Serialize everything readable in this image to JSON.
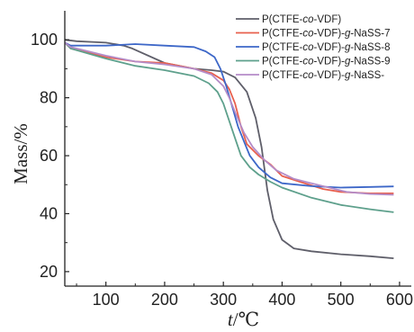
{
  "chart_data": {
    "type": "line",
    "xlabel_parts": [
      {
        "text": "t",
        "italic": true
      },
      {
        "text": "/℃",
        "italic": false
      }
    ],
    "ylabel": "Mass/%",
    "xlim": [
      30,
      620
    ],
    "ylim": [
      15,
      110
    ],
    "xticks": [
      100,
      200,
      300,
      400,
      500,
      600
    ],
    "yticks": [
      20,
      40,
      60,
      80,
      100
    ],
    "grid": false,
    "legend_position": "top-right",
    "series": [
      {
        "name": "P(CTFE-co-VDF)",
        "name_parts": [
          {
            "text": "P(CTFE-",
            "italic": false
          },
          {
            "text": "co",
            "italic": true
          },
          {
            "text": "-VDF)",
            "italic": false
          }
        ],
        "color": "#5f5f6a",
        "x": [
          30,
          50,
          100,
          130,
          145,
          200,
          250,
          280,
          300,
          320,
          340,
          355,
          365,
          375,
          385,
          400,
          420,
          450,
          500,
          550,
          590
        ],
        "y": [
          100,
          99.5,
          99,
          98,
          97,
          92,
          90,
          89.5,
          89,
          87,
          82,
          73,
          63,
          48,
          38,
          31,
          28,
          27,
          26,
          25.3,
          24.6
        ]
      },
      {
        "name": "P(CTFE-co-VDF)-g-NaSS-7",
        "name_parts": [
          {
            "text": "P(CTFE-",
            "italic": false
          },
          {
            "text": "co",
            "italic": true
          },
          {
            "text": "-VDF)-",
            "italic": false
          },
          {
            "text": "g",
            "italic": true
          },
          {
            "text": "-NaSS-7",
            "italic": false
          }
        ],
        "color": "#e8604e",
        "x": [
          30,
          40,
          100,
          150,
          200,
          250,
          280,
          300,
          310,
          320,
          330,
          340,
          360,
          380,
          400,
          430,
          470,
          500,
          550,
          590
        ],
        "y": [
          99,
          97,
          94,
          92.5,
          92,
          90,
          88.5,
          86,
          83,
          78,
          70,
          64,
          60,
          57,
          53,
          51,
          48.5,
          47.5,
          47,
          47
        ]
      },
      {
        "name": "P(CTFE-co-VDF)-g-NaSS-8",
        "name_parts": [
          {
            "text": "P(CTFE-",
            "italic": false
          },
          {
            "text": "co",
            "italic": true
          },
          {
            "text": "-VDF)-",
            "italic": false
          },
          {
            "text": "g",
            "italic": true
          },
          {
            "text": "-NaSS-8",
            "italic": false
          }
        ],
        "color": "#3d67c8",
        "x": [
          30,
          40,
          100,
          150,
          200,
          250,
          270,
          285,
          295,
          305,
          315,
          325,
          335,
          345,
          360,
          380,
          400,
          450,
          500,
          550,
          590
        ],
        "y": [
          99,
          98,
          98,
          98.5,
          98,
          97.5,
          96,
          94,
          90,
          84,
          77,
          70,
          65,
          60,
          56,
          52.5,
          50.5,
          49.5,
          49,
          49.2,
          49.4
        ]
      },
      {
        "name": "P(CTFE-co-VDF)-g-NaSS-9",
        "name_parts": [
          {
            "text": "P(CTFE-",
            "italic": false
          },
          {
            "text": "co",
            "italic": true
          },
          {
            "text": "-VDF)-",
            "italic": false
          },
          {
            "text": "g",
            "italic": true
          },
          {
            "text": "-NaSS-9",
            "italic": false
          }
        ],
        "color": "#5ea08c",
        "x": [
          30,
          40,
          100,
          150,
          200,
          250,
          275,
          290,
          300,
          310,
          320,
          330,
          345,
          360,
          380,
          400,
          450,
          500,
          550,
          590
        ],
        "y": [
          99,
          97,
          93.5,
          91,
          89.5,
          87.5,
          85,
          82,
          78,
          72,
          66,
          60,
          56,
          53.5,
          51,
          49,
          45.5,
          43,
          41.5,
          40.5
        ]
      },
      {
        "name": "P(CTFE-co-VDF)-g-NaSS-",
        "name_parts": [
          {
            "text": "P(CTFE-",
            "italic": false
          },
          {
            "text": "co",
            "italic": true
          },
          {
            "text": "-VDF)-",
            "italic": false
          },
          {
            "text": "g",
            "italic": true
          },
          {
            "text": "-NaSS-",
            "italic": false
          }
        ],
        "color": "#b48cc8",
        "x": [
          30,
          40,
          100,
          150,
          200,
          250,
          280,
          300,
          310,
          320,
          335,
          350,
          370,
          390,
          420,
          450,
          480,
          510,
          550,
          590
        ],
        "y": [
          99,
          97.5,
          94.5,
          92.5,
          91.5,
          90,
          88,
          84,
          80,
          75,
          68,
          63,
          58.5,
          55,
          52,
          50.5,
          49,
          47.5,
          46.8,
          46.5
        ]
      }
    ]
  }
}
